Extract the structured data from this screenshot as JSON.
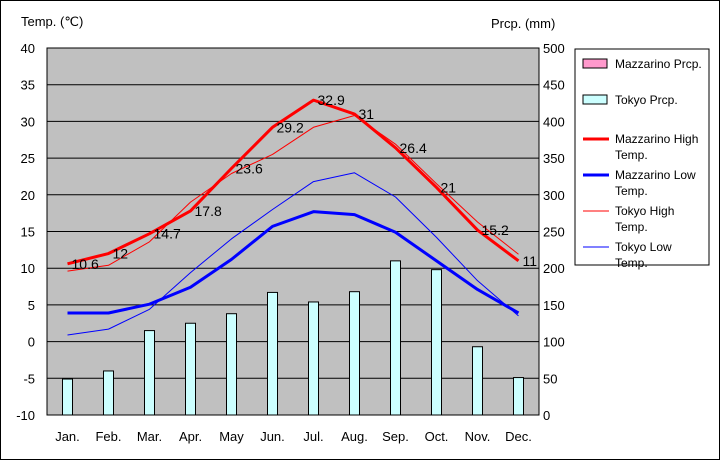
{
  "chart_data": {
    "type": "bar+line",
    "ylabel_left": "Temp. (℃)",
    "ylabel_right": "Prcp. (mm)",
    "ylim_left": [
      -10,
      40
    ],
    "ylim_right": [
      0,
      500
    ],
    "yticks_left": [
      "40",
      "35",
      "30",
      "25",
      "20",
      "15",
      "10",
      "5",
      "0",
      "-5",
      "-10"
    ],
    "yticks_right": [
      "500",
      "450",
      "400",
      "350",
      "300",
      "250",
      "200",
      "150",
      "100",
      "50",
      "0"
    ],
    "categories": [
      "Jan.",
      "Feb.",
      "Mar.",
      "Apr.",
      "May",
      "Jun.",
      "Jul.",
      "Aug.",
      "Sep.",
      "Oct.",
      "Nov.",
      "Dec."
    ],
    "grid": true,
    "legend_position": "right",
    "bar_series": [
      {
        "name": "Mazzarino Prcp.",
        "color": "#ff99cc",
        "values": []
      },
      {
        "name": "Tokyo Prcp.",
        "color": "#ccffff",
        "values": [
          49,
          60,
          115,
          125,
          138,
          167,
          154,
          168,
          210,
          198,
          93,
          51
        ]
      }
    ],
    "line_series": [
      {
        "name": "Mazzarino High Temp.",
        "color": "#ff0000",
        "width": "thick",
        "values": [
          10.6,
          12,
          14.7,
          17.8,
          23.6,
          29.2,
          32.9,
          31,
          26.4,
          21,
          15.2,
          11
        ],
        "labels": [
          "10.6",
          "12",
          "14.7",
          "17.8",
          "23.6",
          "29.2",
          "32.9",
          "31",
          "26.4",
          "21",
          "15.2",
          "11"
        ]
      },
      {
        "name": "Mazzarino Low Temp.",
        "color": "#0000ff",
        "width": "thick",
        "values": [
          3.9,
          3.9,
          5.1,
          7.4,
          11.2,
          15.7,
          17.7,
          17.3,
          14.9,
          11.0,
          7.1,
          3.9
        ]
      },
      {
        "name": "Tokyo High Temp.",
        "color": "#ff0000",
        "width": "thin",
        "values": [
          9.6,
          10.4,
          13.6,
          19.0,
          22.9,
          25.5,
          29.2,
          30.8,
          26.9,
          21.5,
          16.3,
          11.9
        ]
      },
      {
        "name": "Tokyo Low Temp.",
        "color": "#0000ff",
        "width": "thin",
        "values": [
          0.9,
          1.7,
          4.4,
          9.4,
          14.0,
          18.0,
          21.8,
          23.0,
          19.7,
          14.2,
          8.3,
          3.5
        ]
      }
    ]
  }
}
